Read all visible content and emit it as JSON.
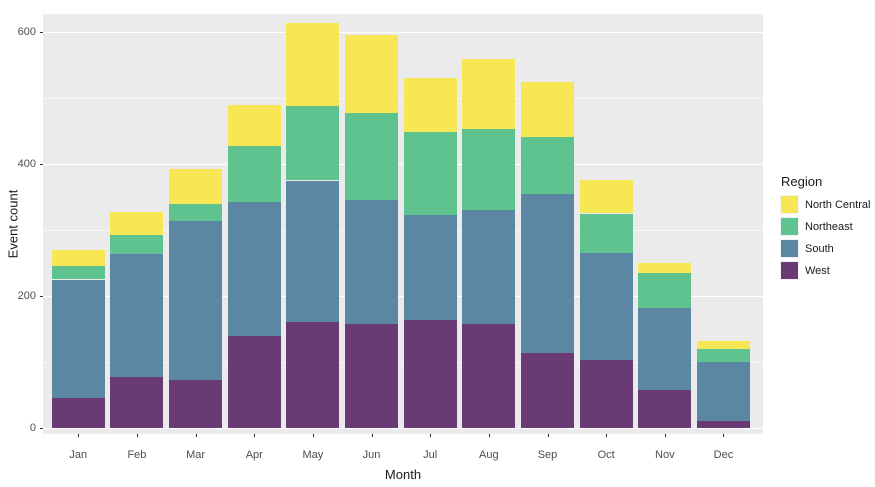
{
  "chart_data": {
    "type": "bar",
    "stacked": true,
    "xlabel": "Month",
    "ylabel": "Event count",
    "legend_title": "Region",
    "legend_position": "right",
    "legend_order": [
      "North Central",
      "Northeast",
      "South",
      "West"
    ],
    "categories": [
      "Jan",
      "Feb",
      "Mar",
      "Apr",
      "May",
      "Jun",
      "Jul",
      "Aug",
      "Sep",
      "Oct",
      "Nov",
      "Dec"
    ],
    "series": [
      {
        "name": "West",
        "color": "#6A3A75",
        "values": [
          45,
          77,
          73,
          140,
          161,
          157,
          164,
          157,
          113,
          103,
          58,
          10
        ]
      },
      {
        "name": "South",
        "color": "#5C87A4",
        "values": [
          180,
          187,
          241,
          203,
          214,
          188,
          158,
          173,
          242,
          162,
          124,
          90
        ]
      },
      {
        "name": "Northeast",
        "color": "#5EC38E",
        "values": [
          20,
          29,
          25,
          85,
          113,
          133,
          126,
          123,
          86,
          60,
          53,
          20
        ]
      },
      {
        "name": "North Central",
        "color": "#F8E755",
        "values": [
          25,
          35,
          53,
          62,
          125,
          118,
          82,
          106,
          84,
          51,
          15,
          12
        ]
      }
    ],
    "stack_totals": [
      270,
      328,
      392,
      490,
      613,
      596,
      530,
      559,
      525,
      376,
      250,
      132
    ],
    "y_ticks": [
      0,
      200,
      400,
      600
    ],
    "y_minor_gridlines": [
      100,
      300,
      500
    ],
    "ylim": [
      0,
      645
    ],
    "panel_background": "#EBEBEB",
    "gridline_color": "#FFFFFF",
    "axis_text_color": "#4D4D4D"
  }
}
